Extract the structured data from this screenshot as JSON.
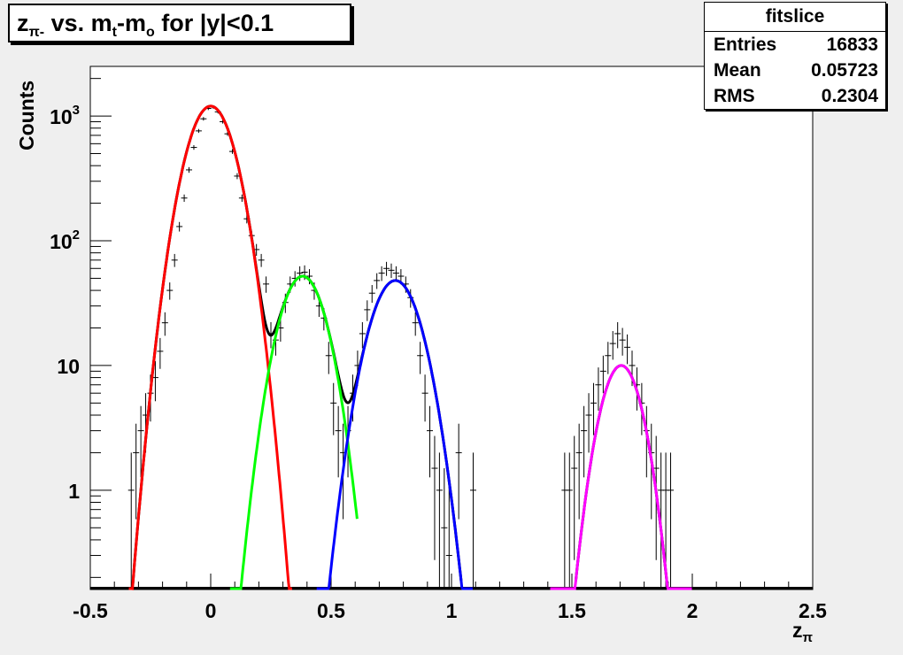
{
  "title": {
    "main": "z",
    "sub": "π-",
    "rest_a": " vs. m",
    "sub2": "t",
    "rest_b": "-m",
    "sub3": "o",
    "rest_c": " for |y|<0.1"
  },
  "stats": {
    "name": "fitslice",
    "rows": [
      {
        "label": "Entries",
        "value": "16833"
      },
      {
        "label": "Mean",
        "value": "0.05723"
      },
      {
        "label": "RMS",
        "value": "0.2304"
      }
    ]
  },
  "axis_labels": {
    "y": "Counts",
    "x_main": "z",
    "x_sub": "π"
  },
  "colors": {
    "background": "#efefef",
    "frame": "#ffffff",
    "data": "#000000",
    "fit1": "#ff0000",
    "fit2": "#00ff00",
    "fit3": "#0000ff",
    "fit4": "#ff00ff"
  },
  "chart_data": {
    "type": "scatter",
    "x_ticks": [
      "-0.5",
      "0",
      "0.5",
      "1",
      "1.5",
      "2",
      "2.5"
    ],
    "x_tick_values": [
      -0.5,
      0,
      0.5,
      1,
      1.5,
      2,
      2.5
    ],
    "y_ticks": [
      {
        "base": "1",
        "exp": "",
        "value": 1
      },
      {
        "base": "10",
        "exp": "",
        "value": 10
      },
      {
        "base": "10",
        "exp": "2",
        "value": 100
      },
      {
        "base": "10",
        "exp": "3",
        "value": 1000
      }
    ],
    "xlim": [
      -0.5,
      2.5
    ],
    "ylim": [
      0.16,
      2500
    ],
    "y_scale": "log",
    "grid": false,
    "series": [
      {
        "x": [
          -0.33,
          -0.31,
          -0.29,
          -0.27,
          -0.25,
          -0.23,
          -0.21,
          -0.19,
          -0.17,
          -0.15,
          -0.13,
          -0.11,
          -0.09,
          -0.07,
          -0.05,
          -0.03,
          -0.01,
          0.01,
          0.03,
          0.05,
          0.07,
          0.09,
          0.11,
          0.13,
          0.15,
          0.17,
          0.19,
          0.21,
          0.23,
          0.25,
          0.27,
          0.29,
          0.31,
          0.33,
          0.35,
          0.37,
          0.39,
          0.41,
          0.43,
          0.45,
          0.47,
          0.49,
          0.51,
          0.53,
          0.55,
          0.57,
          0.59,
          0.61,
          0.63,
          0.65,
          0.67,
          0.69,
          0.71,
          0.73,
          0.75,
          0.77,
          0.79,
          0.81,
          0.83,
          0.85,
          0.87,
          0.89,
          0.91,
          0.93,
          0.95,
          0.97,
          0.99,
          1.03,
          1.09,
          1.47,
          1.49,
          1.51,
          1.53,
          1.55,
          1.57,
          1.59,
          1.61,
          1.63,
          1.65,
          1.67,
          1.69,
          1.71,
          1.73,
          1.75,
          1.77,
          1.79,
          1.81,
          1.83,
          1.85,
          1.87,
          1.89,
          1.91
        ],
        "y": [
          1,
          2,
          3,
          4,
          6,
          8,
          13,
          22,
          40,
          70,
          130,
          220,
          370,
          560,
          760,
          950,
          1150,
          1180,
          1080,
          900,
          720,
          520,
          330,
          220,
          150,
          110,
          85,
          70,
          45,
          18,
          16,
          20,
          32,
          45,
          50,
          55,
          56,
          52,
          40,
          30,
          24,
          12,
          5,
          3,
          2,
          3,
          6,
          10,
          18,
          28,
          38,
          48,
          55,
          60,
          58,
          55,
          52,
          45,
          35,
          22,
          12,
          6,
          3,
          1.5,
          1,
          0.5,
          0.3,
          2,
          1,
          1,
          1,
          1.5,
          2,
          3,
          4,
          5,
          7,
          9,
          12,
          15,
          18,
          16,
          14,
          10,
          7,
          5,
          3,
          2,
          1.5,
          1,
          1,
          1
        ]
      }
    ],
    "fits": [
      {
        "color_key": "fit1",
        "mu": 0.0,
        "sigma": 0.077,
        "amp": 1200,
        "xmin": -0.34,
        "xmax": 0.34
      },
      {
        "color_key": "fit2",
        "mu": 0.382,
        "sigma": 0.0755,
        "amp": 52,
        "xmin": 0.08,
        "xmax": 0.61
      },
      {
        "color_key": "fit3",
        "mu": 0.767,
        "sigma": 0.082,
        "amp": 48,
        "xmin": 0.44,
        "xmax": 1.09
      },
      {
        "color_key": "fit4",
        "mu": 1.705,
        "sigma": 0.067,
        "amp": 10,
        "xmin": 1.41,
        "xmax": 2.0
      }
    ]
  }
}
